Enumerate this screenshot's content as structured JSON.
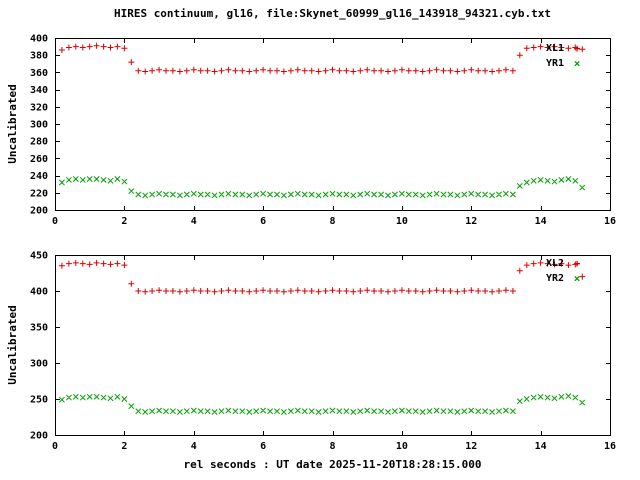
{
  "title": "HIRES continuum, gl16, file:Skynet_60999_gl16_143918_94321.cyb.txt",
  "xlabel": "rel seconds : UT date 2025-11-20T18:28:15.000",
  "colors": {
    "red": "#dd0000",
    "green": "#00a000",
    "text": "#000000",
    "background": "#ffffff"
  },
  "icons": {
    "plus": "+",
    "cross": "×"
  },
  "chart_data": [
    {
      "type": "scatter",
      "ylabel": "Uncalibrated",
      "ylim": [
        200,
        400
      ],
      "yticks": [
        200,
        220,
        240,
        260,
        280,
        300,
        320,
        340,
        360,
        380,
        400
      ],
      "xlim": [
        0,
        16
      ],
      "xticks": [
        0,
        2,
        4,
        6,
        8,
        10,
        12,
        14,
        16
      ],
      "legend_position": "top-right",
      "grid": false,
      "x": [
        0.2,
        0.4,
        0.6,
        0.8,
        1.0,
        1.2,
        1.4,
        1.6,
        1.8,
        2.0,
        2.2,
        2.4,
        2.6,
        2.8,
        3.0,
        3.2,
        3.4,
        3.6,
        3.8,
        4.0,
        4.2,
        4.4,
        4.6,
        4.8,
        5.0,
        5.2,
        5.4,
        5.6,
        5.8,
        6.0,
        6.2,
        6.4,
        6.6,
        6.8,
        7.0,
        7.2,
        7.4,
        7.6,
        7.8,
        8.0,
        8.2,
        8.4,
        8.6,
        8.8,
        9.0,
        9.2,
        9.4,
        9.6,
        9.8,
        10.0,
        10.2,
        10.4,
        10.6,
        10.8,
        11.0,
        11.2,
        11.4,
        11.6,
        11.8,
        12.0,
        12.2,
        12.4,
        12.6,
        12.8,
        13.0,
        13.2,
        13.4,
        13.6,
        13.8,
        14.0,
        14.2,
        14.4,
        14.6,
        14.8,
        15.0,
        15.2
      ],
      "series": [
        {
          "name": "XL1",
          "marker": "plus",
          "color": "#dd0000",
          "values": [
            386,
            389,
            390,
            389,
            390,
            391,
            390,
            389,
            390,
            388,
            372,
            362,
            361,
            362,
            363,
            362,
            362,
            361,
            362,
            363,
            362,
            362,
            361,
            362,
            363,
            362,
            362,
            361,
            362,
            363,
            362,
            362,
            361,
            362,
            363,
            362,
            362,
            361,
            362,
            363,
            362,
            362,
            361,
            362,
            363,
            362,
            362,
            361,
            362,
            363,
            362,
            362,
            361,
            362,
            363,
            362,
            362,
            361,
            362,
            363,
            362,
            362,
            361,
            362,
            363,
            362,
            380,
            388,
            389,
            390,
            389,
            390,
            389,
            388,
            389,
            387
          ]
        },
        {
          "name": "YR1",
          "marker": "cross",
          "color": "#00a000",
          "values": [
            232,
            235,
            236,
            235,
            236,
            236,
            235,
            234,
            236,
            233,
            222,
            218,
            217,
            218,
            219,
            218,
            218,
            217,
            218,
            219,
            218,
            218,
            217,
            218,
            219,
            218,
            218,
            217,
            218,
            219,
            218,
            218,
            217,
            218,
            219,
            218,
            218,
            217,
            218,
            219,
            218,
            218,
            217,
            218,
            219,
            218,
            218,
            217,
            218,
            219,
            218,
            218,
            217,
            218,
            219,
            218,
            218,
            217,
            218,
            219,
            218,
            218,
            217,
            218,
            219,
            218,
            228,
            232,
            234,
            235,
            234,
            233,
            235,
            236,
            234,
            226
          ]
        }
      ]
    },
    {
      "type": "scatter",
      "ylabel": "Uncalibrated",
      "ylim": [
        200,
        450
      ],
      "yticks": [
        200,
        250,
        300,
        350,
        400,
        450
      ],
      "xlim": [
        0,
        16
      ],
      "xticks": [
        0,
        2,
        4,
        6,
        8,
        10,
        12,
        14,
        16
      ],
      "legend_position": "top-right",
      "grid": false,
      "x": [
        0.2,
        0.4,
        0.6,
        0.8,
        1.0,
        1.2,
        1.4,
        1.6,
        1.8,
        2.0,
        2.2,
        2.4,
        2.6,
        2.8,
        3.0,
        3.2,
        3.4,
        3.6,
        3.8,
        4.0,
        4.2,
        4.4,
        4.6,
        4.8,
        5.0,
        5.2,
        5.4,
        5.6,
        5.8,
        6.0,
        6.2,
        6.4,
        6.6,
        6.8,
        7.0,
        7.2,
        7.4,
        7.6,
        7.8,
        8.0,
        8.2,
        8.4,
        8.6,
        8.8,
        9.0,
        9.2,
        9.4,
        9.6,
        9.8,
        10.0,
        10.2,
        10.4,
        10.6,
        10.8,
        11.0,
        11.2,
        11.4,
        11.6,
        11.8,
        12.0,
        12.2,
        12.4,
        12.6,
        12.8,
        13.0,
        13.2,
        13.4,
        13.6,
        13.8,
        14.0,
        14.2,
        14.4,
        14.6,
        14.8,
        15.0,
        15.2
      ],
      "series": [
        {
          "name": "XL2",
          "marker": "plus",
          "color": "#dd0000",
          "values": [
            435,
            438,
            439,
            438,
            437,
            439,
            438,
            437,
            438,
            436,
            410,
            400,
            399,
            400,
            401,
            400,
            400,
            399,
            400,
            401,
            400,
            400,
            399,
            400,
            401,
            400,
            400,
            399,
            400,
            401,
            400,
            400,
            399,
            400,
            401,
            400,
            400,
            399,
            400,
            401,
            400,
            400,
            399,
            400,
            401,
            400,
            400,
            399,
            400,
            401,
            400,
            400,
            399,
            400,
            401,
            400,
            400,
            399,
            400,
            401,
            400,
            400,
            399,
            400,
            401,
            400,
            428,
            436,
            438,
            439,
            438,
            437,
            438,
            436,
            437,
            420
          ]
        },
        {
          "name": "YR2",
          "marker": "cross",
          "color": "#00a000",
          "values": [
            249,
            252,
            253,
            252,
            253,
            253,
            252,
            251,
            253,
            250,
            240,
            233,
            232,
            233,
            234,
            233,
            233,
            232,
            233,
            234,
            233,
            233,
            232,
            233,
            234,
            233,
            233,
            232,
            233,
            234,
            233,
            233,
            232,
            233,
            234,
            233,
            233,
            232,
            233,
            234,
            233,
            233,
            232,
            233,
            234,
            233,
            233,
            232,
            233,
            234,
            233,
            233,
            232,
            233,
            234,
            233,
            233,
            232,
            233,
            234,
            233,
            233,
            232,
            233,
            234,
            233,
            247,
            250,
            252,
            253,
            252,
            251,
            253,
            254,
            252,
            245
          ]
        }
      ]
    }
  ]
}
